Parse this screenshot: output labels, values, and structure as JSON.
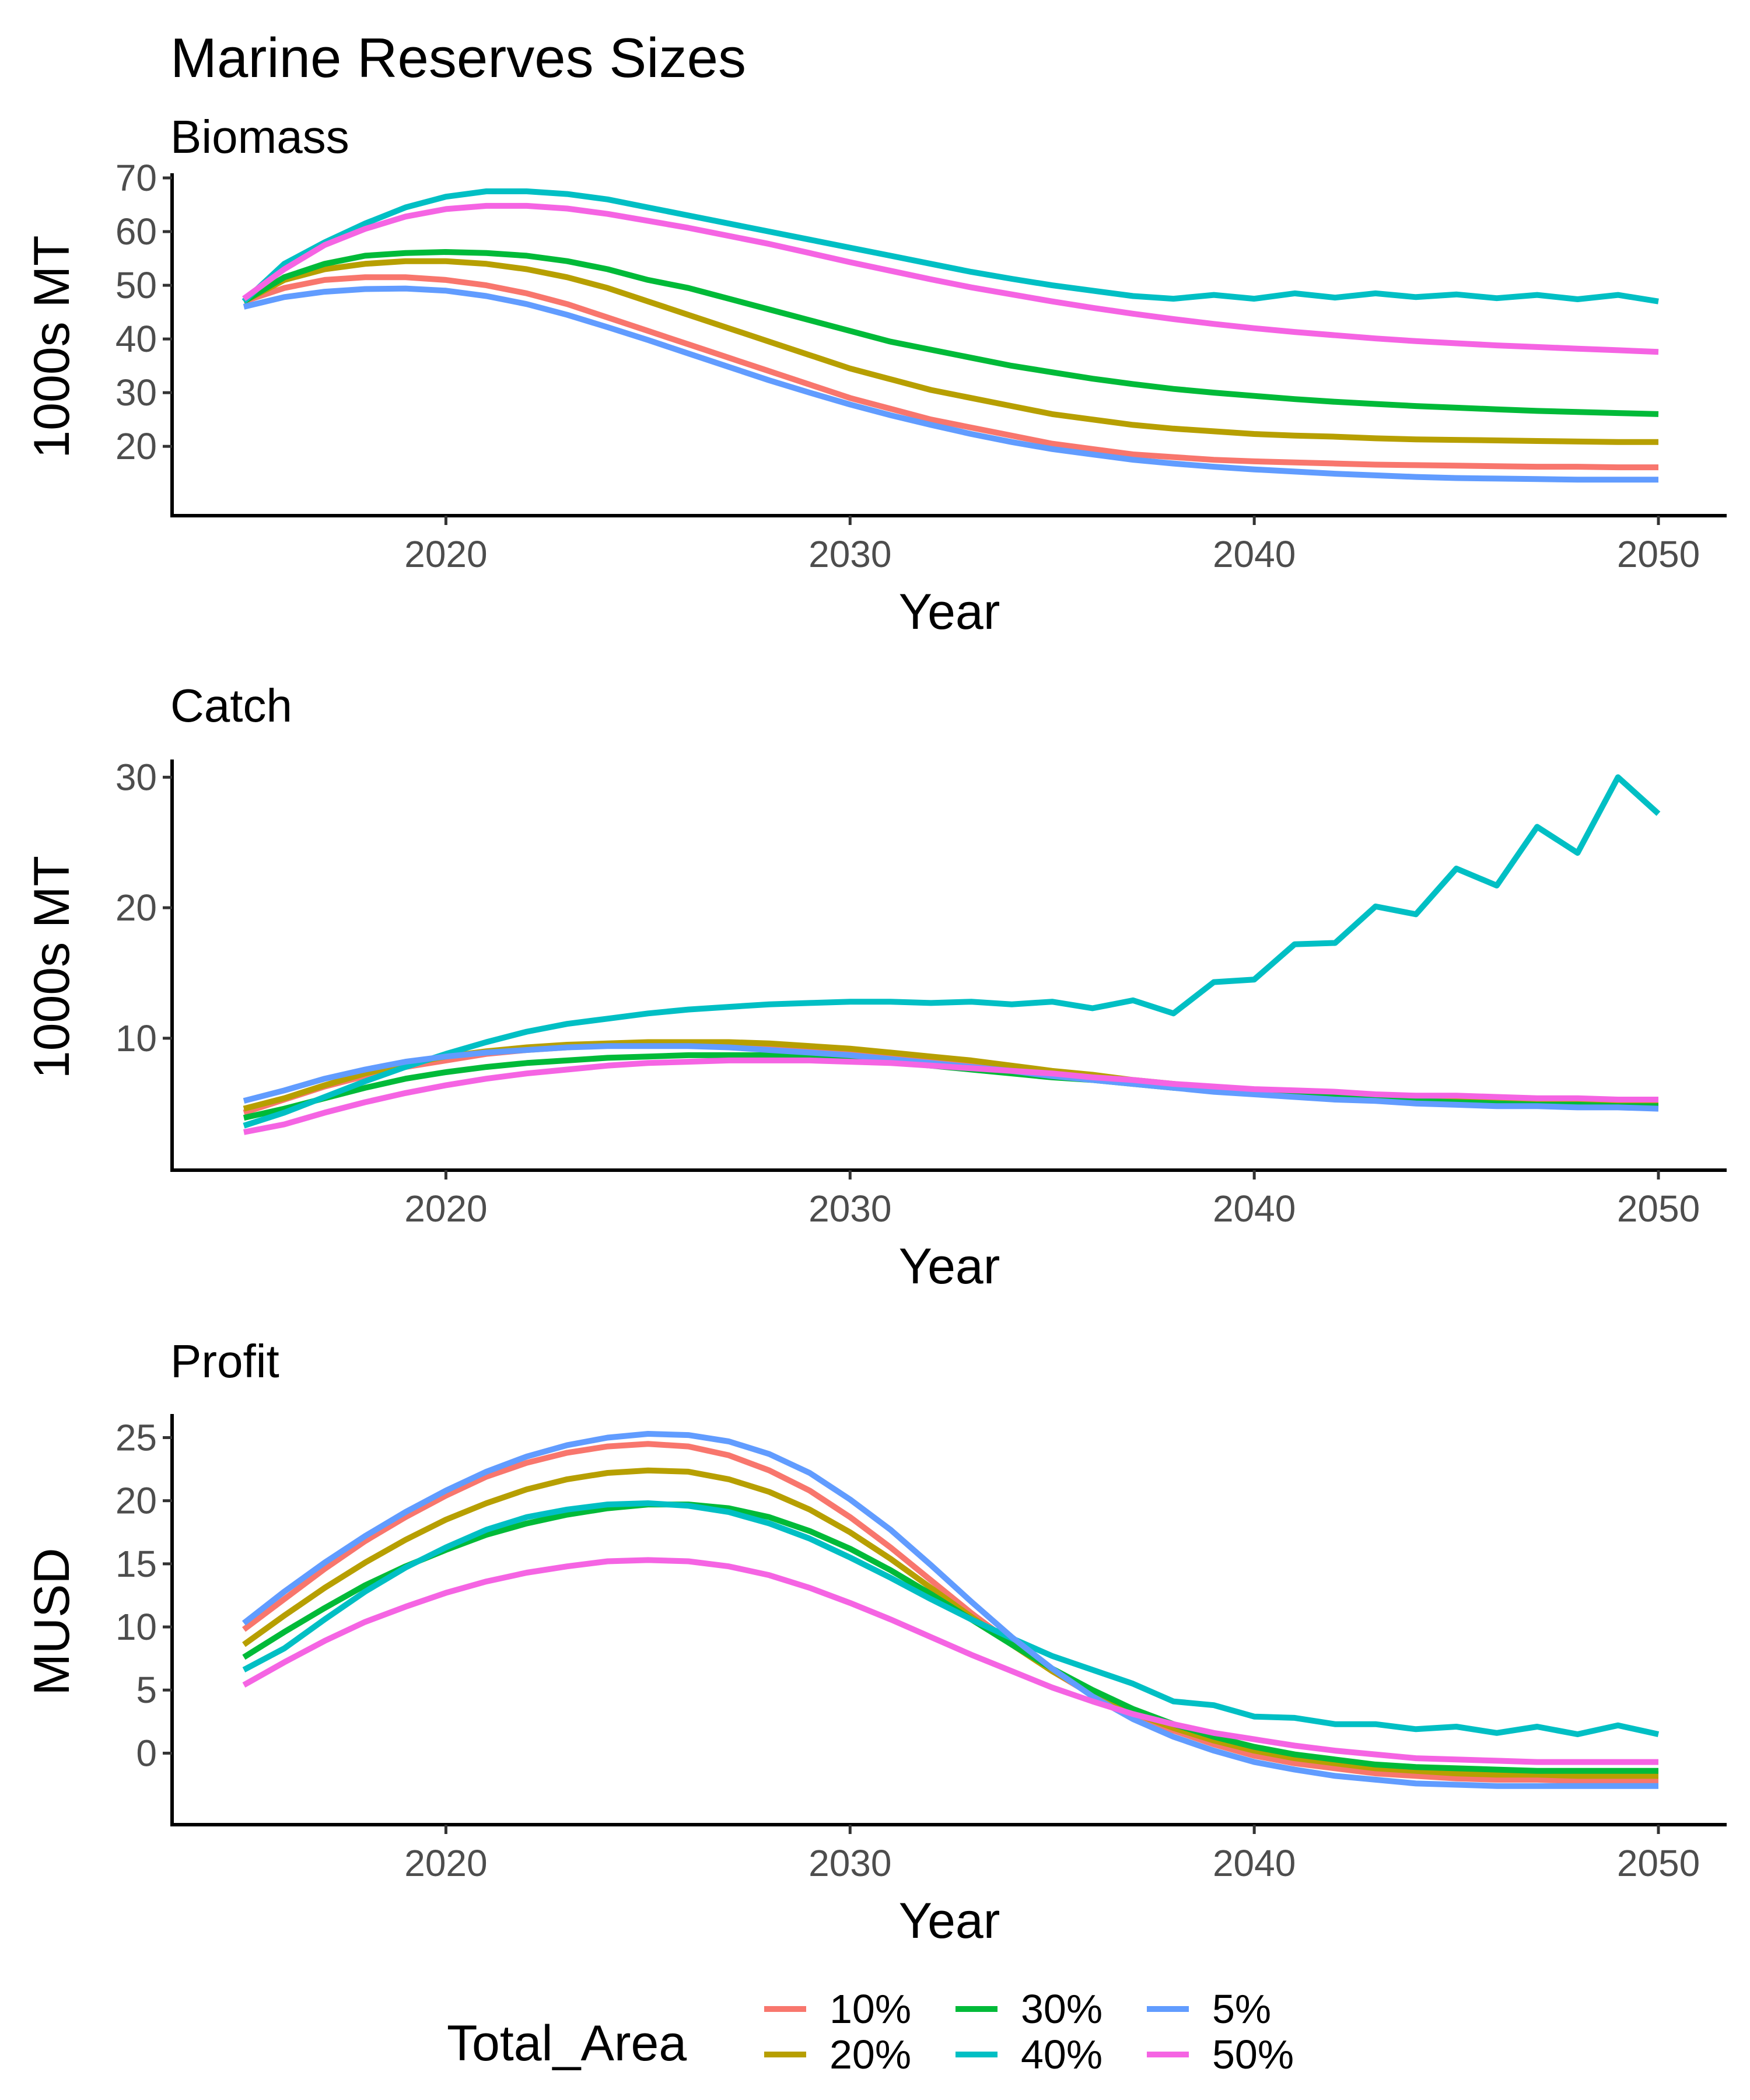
{
  "title": "Marine Reserves Sizes",
  "x_label": "Year",
  "legend": {
    "title": "Total_Area",
    "items": [
      {
        "label": "10%",
        "color": "#F8766D"
      },
      {
        "label": "20%",
        "color": "#B79F00"
      },
      {
        "label": "30%",
        "color": "#00BA38"
      },
      {
        "label": "40%",
        "color": "#00BFC4"
      },
      {
        "label": "5%",
        "color": "#619CFF"
      },
      {
        "label": "50%",
        "color": "#F564E3"
      }
    ]
  },
  "chart_data": [
    {
      "type": "line",
      "title": "Biomass",
      "xlabel": "Year",
      "ylabel": "1000s MT",
      "xlim": [
        2015,
        2050
      ],
      "ylim": [
        11,
        70
      ],
      "xticks": [
        2020,
        2030,
        2040,
        2050
      ],
      "yticks": [
        20,
        30,
        40,
        50,
        60,
        70
      ],
      "grid": false,
      "x": [
        2015,
        2016,
        2017,
        2018,
        2019,
        2020,
        2021,
        2022,
        2023,
        2024,
        2025,
        2026,
        2027,
        2028,
        2029,
        2030,
        2031,
        2032,
        2033,
        2034,
        2035,
        2036,
        2037,
        2038,
        2039,
        2040,
        2041,
        2042,
        2043,
        2044,
        2045,
        2046,
        2047,
        2048,
        2049,
        2050
      ],
      "series": [
        {
          "name": "10%",
          "color": "#F8766D",
          "values": [
            47,
            49.5,
            51,
            51.5,
            51.5,
            51,
            50,
            48.5,
            46.5,
            44,
            41.5,
            39,
            36.5,
            34,
            31.5,
            29,
            27,
            25,
            23.5,
            22,
            20.5,
            19.5,
            18.5,
            18,
            17.5,
            17.2,
            17,
            16.8,
            16.6,
            16.5,
            16.4,
            16.3,
            16.2,
            16.2,
            16.1,
            16.1
          ]
        },
        {
          "name": "20%",
          "color": "#B79F00",
          "values": [
            47,
            51,
            53,
            54,
            54.5,
            54.5,
            54,
            53,
            51.5,
            49.5,
            47,
            44.5,
            42,
            39.5,
            37,
            34.5,
            32.5,
            30.5,
            29,
            27.5,
            26,
            25,
            24,
            23.3,
            22.8,
            22.3,
            22,
            21.8,
            21.5,
            21.3,
            21.2,
            21.1,
            21,
            20.9,
            20.8,
            20.8
          ]
        },
        {
          "name": "30%",
          "color": "#00BA38",
          "values": [
            47,
            51.5,
            54,
            55.5,
            56,
            56.2,
            56,
            55.5,
            54.5,
            53,
            51,
            49.5,
            47.5,
            45.5,
            43.5,
            41.5,
            39.5,
            38,
            36.5,
            35,
            33.8,
            32.6,
            31.6,
            30.7,
            30,
            29.4,
            28.8,
            28.3,
            27.9,
            27.5,
            27.2,
            26.9,
            26.6,
            26.4,
            26.2,
            26
          ]
        },
        {
          "name": "40%",
          "color": "#00BFC4",
          "values": [
            47,
            54,
            58,
            61.5,
            64.5,
            66.5,
            67.5,
            67.5,
            67,
            66,
            64.5,
            63,
            61.5,
            60,
            58.5,
            57,
            55.5,
            54,
            52.5,
            51.2,
            50,
            49,
            48,
            47.5,
            48.2,
            47.5,
            48.5,
            47.7,
            48.5,
            47.8,
            48.3,
            47.6,
            48.2,
            47.4,
            48.2,
            47
          ]
        },
        {
          "name": "5%",
          "color": "#619CFF",
          "values": [
            46,
            47.8,
            48.8,
            49.3,
            49.4,
            49,
            48,
            46.5,
            44.5,
            42.2,
            39.8,
            37.3,
            34.8,
            32.3,
            30,
            27.8,
            25.8,
            24,
            22.3,
            20.8,
            19.5,
            18.5,
            17.5,
            16.8,
            16.2,
            15.7,
            15.3,
            14.9,
            14.6,
            14.3,
            14.1,
            14,
            13.9,
            13.8,
            13.8,
            13.8
          ]
        },
        {
          "name": "50%",
          "color": "#F564E3",
          "values": [
            47.5,
            53,
            57.5,
            60.5,
            62.8,
            64.2,
            64.8,
            64.8,
            64.3,
            63.3,
            62,
            60.7,
            59.2,
            57.7,
            56,
            54.3,
            52.7,
            51.1,
            49.6,
            48.3,
            47,
            45.8,
            44.7,
            43.7,
            42.8,
            42,
            41.3,
            40.7,
            40.1,
            39.6,
            39.2,
            38.8,
            38.5,
            38.2,
            37.9,
            37.6
          ]
        }
      ]
    },
    {
      "type": "line",
      "title": "Catch",
      "xlabel": "Year",
      "ylabel": "1000s MT",
      "xlim": [
        2015,
        2050
      ],
      "ylim": [
        1.5,
        31
      ],
      "xticks": [
        2020,
        2030,
        2040,
        2050
      ],
      "yticks": [
        10,
        20,
        30
      ],
      "grid": false,
      "x": [
        2015,
        2016,
        2017,
        2018,
        2019,
        2020,
        2021,
        2022,
        2023,
        2024,
        2025,
        2026,
        2027,
        2028,
        2029,
        2030,
        2031,
        2032,
        2033,
        2034,
        2035,
        2036,
        2037,
        2038,
        2039,
        2040,
        2041,
        2042,
        2043,
        2044,
        2045,
        2046,
        2047,
        2048,
        2049,
        2050
      ],
      "series": [
        {
          "name": "10%",
          "color": "#F8766D",
          "values": [
            4.3,
            5.3,
            6.3,
            7.1,
            7.8,
            8.3,
            8.8,
            9.1,
            9.3,
            9.5,
            9.6,
            9.6,
            9.6,
            9.5,
            9.3,
            9.1,
            8.8,
            8.5,
            8.2,
            7.8,
            7.4,
            7.1,
            6.7,
            6.4,
            6.1,
            5.9,
            5.7,
            5.5,
            5.4,
            5.2,
            5.1,
            5,
            4.9,
            4.9,
            4.8,
            4.8
          ]
        },
        {
          "name": "20%",
          "color": "#B79F00",
          "values": [
            4.6,
            5.4,
            6.4,
            7.3,
            8,
            8.6,
            9,
            9.3,
            9.5,
            9.6,
            9.7,
            9.7,
            9.7,
            9.6,
            9.4,
            9.2,
            8.9,
            8.6,
            8.3,
            7.9,
            7.5,
            7.2,
            6.8,
            6.5,
            6.2,
            6,
            5.8,
            5.6,
            5.4,
            5.3,
            5.2,
            5.1,
            5,
            5,
            4.9,
            4.9
          ]
        },
        {
          "name": "30%",
          "color": "#00BA38",
          "values": [
            3.9,
            4.6,
            5.4,
            6.2,
            6.9,
            7.4,
            7.8,
            8.1,
            8.3,
            8.5,
            8.6,
            8.7,
            8.7,
            8.7,
            8.6,
            8.4,
            8.2,
            7.9,
            7.6,
            7.3,
            7,
            6.8,
            6.5,
            6.2,
            6,
            5.8,
            5.6,
            5.5,
            5.3,
            5.2,
            5.1,
            5,
            4.9,
            4.9,
            4.8,
            4.8
          ]
        },
        {
          "name": "40%",
          "color": "#00BFC4",
          "values": [
            3.3,
            4.3,
            5.5,
            6.7,
            7.8,
            8.8,
            9.7,
            10.5,
            11.1,
            11.5,
            11.9,
            12.2,
            12.4,
            12.6,
            12.7,
            12.8,
            12.8,
            12.7,
            12.8,
            12.6,
            12.8,
            12.3,
            12.9,
            11.9,
            14.3,
            14.5,
            17.2,
            17.3,
            20.1,
            19.5,
            23,
            21.7,
            26.2,
            24.2,
            30,
            27.2
          ]
        },
        {
          "name": "5%",
          "color": "#619CFF",
          "values": [
            5.2,
            6,
            6.9,
            7.6,
            8.2,
            8.6,
            8.9,
            9.1,
            9.3,
            9.4,
            9.4,
            9.4,
            9.3,
            9.1,
            8.9,
            8.7,
            8.4,
            8.1,
            7.8,
            7.5,
            7.1,
            6.8,
            6.5,
            6.2,
            5.9,
            5.7,
            5.5,
            5.3,
            5.2,
            5,
            4.9,
            4.8,
            4.8,
            4.7,
            4.7,
            4.6
          ]
        },
        {
          "name": "50%",
          "color": "#F564E3",
          "values": [
            2.8,
            3.4,
            4.3,
            5.1,
            5.8,
            6.4,
            6.9,
            7.3,
            7.6,
            7.9,
            8.1,
            8.2,
            8.3,
            8.3,
            8.3,
            8.2,
            8.1,
            7.9,
            7.7,
            7.5,
            7.3,
            7,
            6.8,
            6.5,
            6.3,
            6.1,
            6,
            5.9,
            5.7,
            5.6,
            5.6,
            5.5,
            5.4,
            5.4,
            5.3,
            5.3
          ]
        }
      ]
    },
    {
      "type": "line",
      "title": "Profit",
      "xlabel": "Year",
      "ylabel": "MUSD",
      "xlim": [
        2015,
        2050
      ],
      "ylim": [
        -4,
        26.5
      ],
      "xticks": [
        2020,
        2030,
        2040,
        2050
      ],
      "yticks": [
        0,
        5,
        10,
        15,
        20,
        25
      ],
      "grid": false,
      "x": [
        2015,
        2016,
        2017,
        2018,
        2019,
        2020,
        2021,
        2022,
        2023,
        2024,
        2025,
        2026,
        2027,
        2028,
        2029,
        2030,
        2031,
        2032,
        2033,
        2034,
        2035,
        2036,
        2037,
        2038,
        2039,
        2040,
        2041,
        2042,
        2043,
        2044,
        2045,
        2046,
        2047,
        2048,
        2049,
        2050
      ],
      "series": [
        {
          "name": "10%",
          "color": "#F8766D",
          "values": [
            9.8,
            12.2,
            14.6,
            16.8,
            18.7,
            20.4,
            21.9,
            23,
            23.8,
            24.3,
            24.5,
            24.3,
            23.6,
            22.4,
            20.8,
            18.7,
            16.3,
            13.7,
            11.1,
            8.7,
            6.5,
            4.6,
            3,
            1.8,
            0.7,
            -0.2,
            -0.8,
            -1.2,
            -1.6,
            -1.8,
            -2,
            -2.1,
            -2.1,
            -2.2,
            -2.2,
            -2.2
          ]
        },
        {
          "name": "20%",
          "color": "#B79F00",
          "values": [
            8.6,
            10.9,
            13.1,
            15.1,
            16.9,
            18.5,
            19.8,
            20.9,
            21.7,
            22.2,
            22.4,
            22.3,
            21.7,
            20.7,
            19.3,
            17.5,
            15.4,
            13.1,
            10.8,
            8.6,
            6.5,
            4.7,
            3.2,
            2,
            1,
            0.2,
            -0.4,
            -0.8,
            -1.2,
            -1.4,
            -1.6,
            -1.7,
            -1.7,
            -1.8,
            -1.8,
            -1.8
          ]
        },
        {
          "name": "30%",
          "color": "#00BA38",
          "values": [
            7.6,
            9.6,
            11.5,
            13.3,
            14.8,
            16.1,
            17.3,
            18.2,
            18.9,
            19.4,
            19.7,
            19.7,
            19.4,
            18.7,
            17.6,
            16.2,
            14.5,
            12.6,
            10.6,
            8.6,
            6.7,
            5,
            3.5,
            2.3,
            1.3,
            0.5,
            -0.1,
            -0.5,
            -0.9,
            -1.1,
            -1.2,
            -1.3,
            -1.4,
            -1.4,
            -1.4,
            -1.4
          ]
        },
        {
          "name": "40%",
          "color": "#00BFC4",
          "values": [
            6.6,
            8.3,
            10.6,
            12.8,
            14.7,
            16.3,
            17.7,
            18.7,
            19.3,
            19.7,
            19.8,
            19.6,
            19.1,
            18.2,
            17,
            15.5,
            13.9,
            12.2,
            10.6,
            9.1,
            7.7,
            6.6,
            5.5,
            4.1,
            3.8,
            2.9,
            2.8,
            2.3,
            2.3,
            1.9,
            2.1,
            1.6,
            2.1,
            1.5,
            2.2,
            1.5
          ]
        },
        {
          "name": "5%",
          "color": "#619CFF",
          "values": [
            10.3,
            12.8,
            15.1,
            17.2,
            19.1,
            20.8,
            22.3,
            23.5,
            24.4,
            25,
            25.3,
            25.2,
            24.7,
            23.7,
            22.2,
            20.1,
            17.7,
            14.9,
            12,
            9.2,
            6.7,
            4.5,
            2.7,
            1.3,
            0.2,
            -0.7,
            -1.3,
            -1.8,
            -2.1,
            -2.4,
            -2.5,
            -2.6,
            -2.6,
            -2.6,
            -2.6,
            -2.6
          ]
        },
        {
          "name": "50%",
          "color": "#F564E3",
          "values": [
            5.4,
            7.2,
            8.9,
            10.4,
            11.6,
            12.7,
            13.6,
            14.3,
            14.8,
            15.2,
            15.3,
            15.2,
            14.8,
            14.1,
            13.1,
            11.9,
            10.6,
            9.2,
            7.8,
            6.5,
            5.2,
            4.1,
            3.1,
            2.3,
            1.6,
            1.1,
            0.6,
            0.2,
            -0.1,
            -0.4,
            -0.5,
            -0.6,
            -0.7,
            -0.7,
            -0.7,
            -0.7
          ]
        }
      ]
    }
  ]
}
